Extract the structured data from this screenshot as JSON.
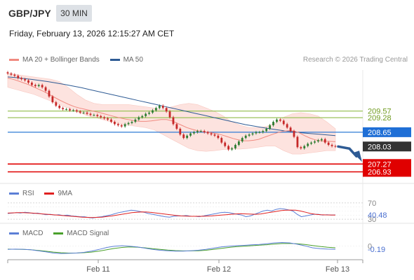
{
  "header": {
    "pair": "GBP/JPY",
    "timeframe": "30 MIN",
    "datetime": "Friday, February 13, 2026 12:15:27 AM CET",
    "credit": "Research © 2026 Trading Central"
  },
  "legends": {
    "main": [
      {
        "label": "MA 20 + Bollinger Bands",
        "color": "#f08a80"
      },
      {
        "label": "MA 50",
        "color": "#2e5b94"
      }
    ],
    "rsi": [
      {
        "label": "RSI",
        "color": "#5b7fd6"
      },
      {
        "label": "9MA",
        "color": "#e02020"
      }
    ],
    "macd": [
      {
        "label": "MACD",
        "color": "#5b7fd6"
      },
      {
        "label": "MACD Signal",
        "color": "#4aa02c"
      }
    ]
  },
  "colors": {
    "up": "#2e7d32",
    "down": "#c62828",
    "band_fill": "#fde3df",
    "ma20": "#f08a80",
    "ma50": "#2e5b94",
    "level_green": "#9bc25a",
    "current_line": "#2e7bd6",
    "support_red": "#e00000",
    "arrow": "#2e5b94"
  },
  "chart_data": [
    {
      "type": "candlestick",
      "title": "GBP/JPY 30 MIN",
      "x_ticks": [
        "Feb 11",
        "Feb 12",
        "Feb 13"
      ],
      "ylim": [
        206.55,
        211.35
      ],
      "levels": [
        {
          "value": 209.57,
          "label": "209.57",
          "kind": "resistance",
          "label_color": "#6f9a1f"
        },
        {
          "value": 209.28,
          "label": "209.28",
          "kind": "resistance",
          "label_color": "#6f9a1f"
        },
        {
          "value": 208.65,
          "label": "208.65",
          "kind": "current",
          "label_color": "#ffffff"
        },
        {
          "value": 208.03,
          "label": "208.03",
          "kind": "last",
          "label_color": "#ffffff"
        },
        {
          "value": 207.27,
          "label": "207.27",
          "kind": "support",
          "label_color": "#ffffff"
        },
        {
          "value": 206.93,
          "label": "206.93",
          "kind": "support",
          "label_color": "#ffffff"
        }
      ],
      "close": [
        211.2,
        211.15,
        211.1,
        211.0,
        210.95,
        210.9,
        210.8,
        210.7,
        210.65,
        210.7,
        210.6,
        210.45,
        210.2,
        209.95,
        209.8,
        209.7,
        209.65,
        209.65,
        209.6,
        209.6,
        209.55,
        209.5,
        209.5,
        209.45,
        209.4,
        209.4,
        209.35,
        209.3,
        209.25,
        209.2,
        209.1,
        209.0,
        208.95,
        208.9,
        209.0,
        209.05,
        209.1,
        209.2,
        209.3,
        209.35,
        209.45,
        209.5,
        209.6,
        209.7,
        209.8,
        209.7,
        209.55,
        209.3,
        209.0,
        208.8,
        208.55,
        208.4,
        208.5,
        208.6,
        208.65,
        208.7,
        208.7,
        208.65,
        208.6,
        208.55,
        208.5,
        208.4,
        208.2,
        208.05,
        207.9,
        207.95,
        208.1,
        208.25,
        208.4,
        208.5,
        208.55,
        208.6,
        208.65,
        208.65,
        208.7,
        208.8,
        208.95,
        209.1,
        209.2,
        209.15,
        209.0,
        208.85,
        208.7,
        208.45,
        208.0,
        207.95,
        208.05,
        208.15,
        208.2,
        208.25,
        208.3,
        208.35,
        208.2,
        208.1,
        208.05,
        208.03
      ],
      "ma20": [
        211.0,
        210.95,
        210.88,
        210.8,
        210.72,
        210.62,
        210.52,
        210.42,
        210.3,
        210.18,
        210.06,
        209.95,
        209.85,
        209.76,
        209.7,
        209.65,
        209.6,
        209.55,
        209.5,
        209.44,
        209.38,
        209.32,
        209.27,
        209.22,
        209.18,
        209.14,
        209.12,
        209.12,
        209.14,
        209.17,
        209.2,
        209.2,
        209.15,
        209.05,
        208.95,
        208.85,
        208.78,
        208.72,
        208.68,
        208.65,
        208.62,
        208.58,
        208.52,
        208.45,
        208.38,
        208.32,
        208.28,
        208.28,
        208.3,
        208.34,
        208.42,
        208.5,
        208.58,
        208.65,
        208.7,
        208.72,
        208.7,
        208.62,
        208.5,
        208.4,
        208.32,
        208.28,
        208.26,
        208.25,
        208.24
      ],
      "ma50": [
        211.05,
        211.02,
        210.98,
        210.94,
        210.89,
        210.84,
        210.78,
        210.72,
        210.65,
        210.58,
        210.5,
        210.42,
        210.34,
        210.26,
        210.18,
        210.1,
        210.02,
        209.94,
        209.86,
        209.78,
        209.7,
        209.62,
        209.54,
        209.46,
        209.38,
        209.3,
        209.22,
        209.14,
        209.06,
        208.98,
        208.92,
        208.86,
        208.8,
        208.75,
        208.7,
        208.66,
        208.62,
        208.59,
        208.56,
        208.53,
        208.5
      ],
      "bollinger_upper": [
        211.2,
        211.15,
        211.1,
        211.05,
        211.0,
        210.95,
        210.85,
        210.6,
        210.3,
        210.05,
        209.9,
        209.85,
        209.85,
        209.85,
        209.85,
        209.8,
        209.75,
        209.7,
        209.65,
        209.75,
        209.85,
        209.9,
        209.85,
        209.7,
        209.55,
        209.35,
        209.1,
        208.95,
        208.85,
        208.85,
        208.9,
        209.05,
        209.3,
        209.45,
        209.5,
        209.45,
        209.35,
        209.1,
        208.8
      ],
      "bollinger_lower": [
        210.6,
        210.5,
        210.4,
        210.3,
        210.15,
        210.0,
        209.85,
        209.7,
        209.55,
        209.4,
        209.3,
        209.2,
        209.1,
        209.0,
        208.95,
        208.9,
        208.85,
        208.75,
        208.55,
        208.35,
        208.15,
        207.95,
        207.85,
        207.82,
        207.85,
        207.9,
        207.92,
        207.92,
        207.95,
        208.0,
        208.05,
        208.05,
        207.85,
        207.7,
        207.7,
        207.75,
        207.8,
        207.85,
        207.85
      ]
    },
    {
      "type": "line",
      "title": "RSI",
      "ylim": [
        25,
        75
      ],
      "levels": [
        {
          "value": 70,
          "label": "70"
        },
        {
          "value": 30,
          "label": "30"
        }
      ],
      "current_label": "40.48",
      "series": [
        {
          "name": "RSI",
          "values": [
            44,
            45,
            46,
            45,
            47,
            46,
            44,
            45,
            43,
            41,
            42,
            40,
            41,
            39,
            40,
            38,
            37,
            36,
            36,
            34,
            33,
            35,
            36,
            38,
            40,
            43,
            46,
            48,
            50,
            52,
            51,
            49,
            47,
            44,
            42,
            40,
            38,
            36,
            35,
            37,
            38,
            38,
            39,
            37,
            37,
            36,
            38,
            40,
            42,
            44,
            46,
            47,
            46,
            44,
            42,
            40,
            36,
            38,
            42,
            46,
            50,
            52,
            50,
            54,
            56,
            55,
            53,
            50,
            42,
            36,
            38,
            40,
            42,
            42,
            40,
            41,
            40,
            40.48
          ]
        },
        {
          "name": "9MA",
          "values": [
            45,
            45.5,
            46,
            46,
            45.5,
            45,
            44,
            43,
            42,
            41,
            40,
            39,
            38,
            37,
            36,
            35,
            34.5,
            34,
            34.5,
            35,
            36.5,
            38,
            40,
            42,
            44,
            46,
            47,
            48,
            47.5,
            46.5,
            45,
            43.5,
            42,
            40.5,
            39,
            38,
            37.5,
            37,
            37,
            37,
            37.5,
            38,
            39,
            40,
            41,
            42,
            43,
            43.5,
            43,
            42.5,
            42,
            43,
            45,
            47,
            49,
            51,
            52,
            52.5,
            52,
            50,
            47,
            44,
            42,
            41,
            40.5,
            40.3,
            40.2
          ]
        }
      ]
    },
    {
      "type": "line",
      "title": "MACD",
      "ylim": [
        -0.7,
        0.5
      ],
      "levels": [
        {
          "value": 0,
          "label": "0"
        }
      ],
      "current_label": "-0.19",
      "series": [
        {
          "name": "MACD",
          "values": [
            -0.2,
            -0.18,
            -0.19,
            -0.22,
            -0.28,
            -0.35,
            -0.42,
            -0.45,
            -0.44,
            -0.42,
            -0.38,
            -0.3,
            -0.2,
            -0.08,
            0.0,
            0.03,
            0.0,
            -0.05,
            -0.12,
            -0.2,
            -0.25,
            -0.28,
            -0.3,
            -0.3,
            -0.28,
            -0.25,
            -0.2,
            -0.12,
            -0.05,
            0.0,
            0.03,
            0.05,
            0.08,
            0.1,
            0.15,
            0.2,
            0.22,
            0.2,
            0.12,
            0.02,
            -0.1,
            -0.15,
            -0.18,
            -0.19
          ]
        },
        {
          "name": "MACD Signal",
          "values": [
            -0.18,
            -0.19,
            -0.2,
            -0.22,
            -0.26,
            -0.31,
            -0.36,
            -0.4,
            -0.42,
            -0.42,
            -0.4,
            -0.36,
            -0.3,
            -0.22,
            -0.14,
            -0.08,
            -0.05,
            -0.06,
            -0.1,
            -0.15,
            -0.2,
            -0.24,
            -0.27,
            -0.29,
            -0.29,
            -0.28,
            -0.25,
            -0.2,
            -0.14,
            -0.08,
            -0.03,
            0.0,
            0.03,
            0.06,
            0.09,
            0.13,
            0.16,
            0.17,
            0.15,
            0.1,
            0.04,
            -0.02,
            -0.07,
            -0.1
          ]
        }
      ]
    }
  ]
}
